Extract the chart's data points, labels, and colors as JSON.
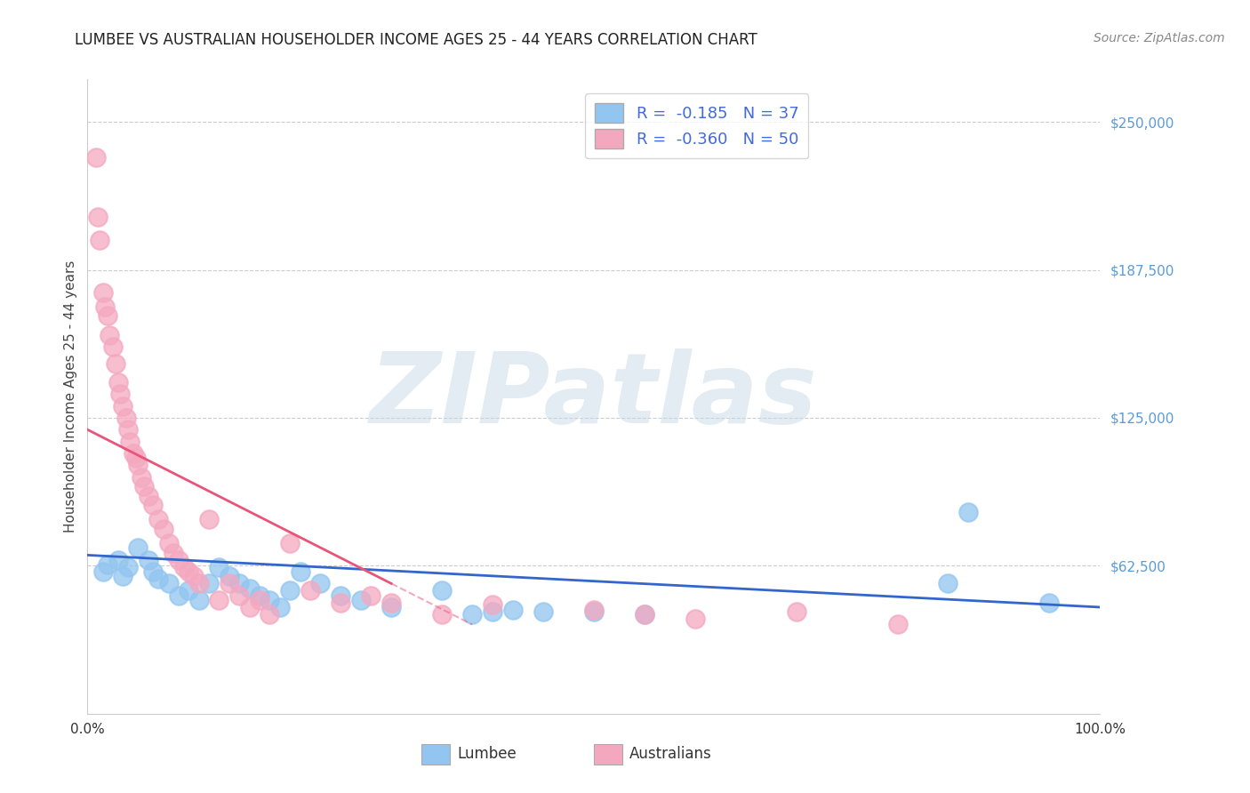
{
  "title": "LUMBEE VS AUSTRALIAN HOUSEHOLDER INCOME AGES 25 - 44 YEARS CORRELATION CHART",
  "source": "Source: ZipAtlas.com",
  "ylabel": "Householder Income Ages 25 - 44 years",
  "xlim": [
    0.0,
    100.0
  ],
  "ylim": [
    0,
    268000
  ],
  "yticks": [
    0,
    62500,
    125000,
    187500,
    250000
  ],
  "ytick_labels": [
    "",
    "$62,500",
    "$125,000",
    "$187,500",
    "$250,000"
  ],
  "watermark_text": "ZIPatlas",
  "legend_lumbee_R": "-0.185",
  "legend_lumbee_N": "37",
  "legend_aus_R": "-0.360",
  "legend_aus_N": "50",
  "lumbee_color": "#92C5F0",
  "aus_color": "#F4A8C0",
  "lumbee_line_color": "#3366CC",
  "aus_line_color": "#E8547A",
  "lumbee_x": [
    1.5,
    2.0,
    3.0,
    3.5,
    4.0,
    5.0,
    6.0,
    6.5,
    7.0,
    8.0,
    9.0,
    10.0,
    11.0,
    12.0,
    13.0,
    14.0,
    15.0,
    16.0,
    17.0,
    18.0,
    19.0,
    20.0,
    21.0,
    23.0,
    25.0,
    27.0,
    30.0,
    35.0,
    38.0,
    40.0,
    42.0,
    45.0,
    50.0,
    55.0,
    85.0,
    87.0,
    95.0
  ],
  "lumbee_y": [
    60000,
    63000,
    65000,
    58000,
    62000,
    70000,
    65000,
    60000,
    57000,
    55000,
    50000,
    52000,
    48000,
    55000,
    62000,
    58000,
    55000,
    53000,
    50000,
    48000,
    45000,
    52000,
    60000,
    55000,
    50000,
    48000,
    45000,
    52000,
    42000,
    43000,
    44000,
    43000,
    43000,
    42000,
    55000,
    85000,
    47000
  ],
  "aus_x": [
    0.8,
    1.0,
    1.2,
    1.5,
    1.7,
    2.0,
    2.2,
    2.5,
    2.8,
    3.0,
    3.2,
    3.5,
    3.8,
    4.0,
    4.2,
    4.5,
    4.8,
    5.0,
    5.3,
    5.6,
    6.0,
    6.5,
    7.0,
    7.5,
    8.0,
    8.5,
    9.0,
    9.5,
    10.0,
    10.5,
    11.0,
    12.0,
    13.0,
    14.0,
    15.0,
    16.0,
    17.0,
    18.0,
    20.0,
    22.0,
    25.0,
    28.0,
    30.0,
    35.0,
    40.0,
    50.0,
    55.0,
    60.0,
    70.0,
    80.0
  ],
  "aus_y": [
    235000,
    210000,
    200000,
    178000,
    172000,
    168000,
    160000,
    155000,
    148000,
    140000,
    135000,
    130000,
    125000,
    120000,
    115000,
    110000,
    108000,
    105000,
    100000,
    96000,
    92000,
    88000,
    82000,
    78000,
    72000,
    68000,
    65000,
    62000,
    60000,
    58000,
    55000,
    82000,
    48000,
    55000,
    50000,
    45000,
    48000,
    42000,
    72000,
    52000,
    47000,
    50000,
    47000,
    42000,
    46000,
    44000,
    42000,
    40000,
    43000,
    38000
  ],
  "aus_line_x_solid_end": 30.0,
  "title_fontsize": 12,
  "source_fontsize": 10,
  "ylabel_fontsize": 11,
  "ytick_fontsize": 11,
  "xtick_fontsize": 11,
  "legend_fontsize": 13,
  "watermark_fontsize": 80
}
